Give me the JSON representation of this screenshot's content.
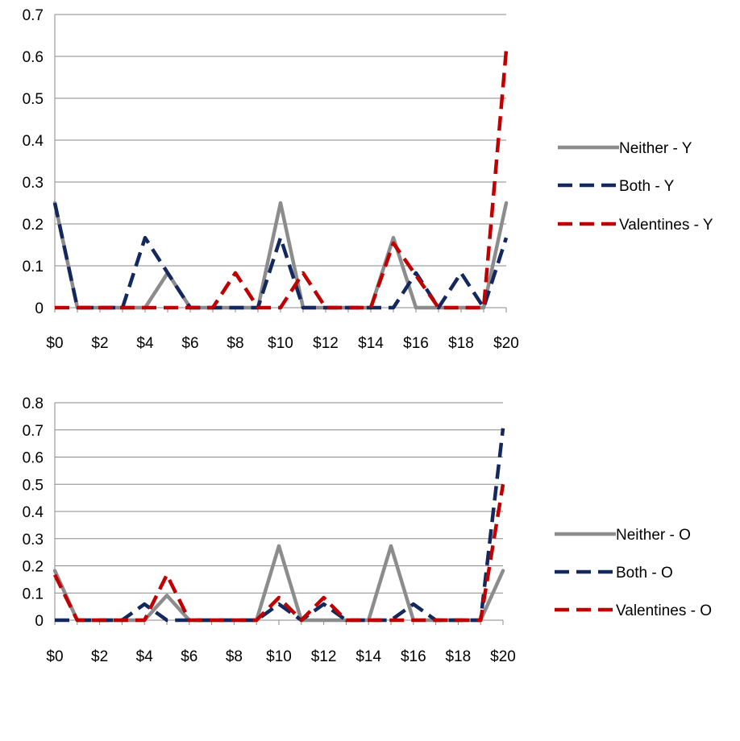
{
  "chart_data": [
    {
      "type": "line",
      "categories": [
        "$0",
        "$1",
        "$2",
        "$3",
        "$4",
        "$5",
        "$6",
        "$7",
        "$8",
        "$9",
        "$10",
        "$11",
        "$12",
        "$13",
        "$14",
        "$15",
        "$16",
        "$17",
        "$18",
        "$19",
        "$20"
      ],
      "x_tick_labels": [
        "$0",
        "$2",
        "$4",
        "$6",
        "$8",
        "$10",
        "$12",
        "$14",
        "$16",
        "$18",
        "$20"
      ],
      "ylim": [
        0,
        0.7
      ],
      "y_ticks": [
        "0",
        "0.1",
        "0.2",
        "0.3",
        "0.4",
        "0.5",
        "0.6",
        "0.7"
      ],
      "grid": true,
      "legend_position": "right",
      "series": [
        {
          "name": "Neither - Y",
          "color": "#8c8c8c",
          "style": "solid",
          "values": [
            0.25,
            0,
            0,
            0,
            0,
            0.083,
            0,
            0,
            0,
            0,
            0.25,
            0,
            0,
            0,
            0,
            0.167,
            0,
            0,
            0,
            0,
            0.25
          ]
        },
        {
          "name": "Both - Y",
          "color": "#13285e",
          "style": "dashed",
          "values": [
            0.25,
            0,
            0,
            0,
            0.167,
            0.083,
            0,
            0,
            0,
            0,
            0.167,
            0,
            0,
            0,
            0,
            0,
            0.083,
            0,
            0.083,
            0,
            0.167
          ]
        },
        {
          "name": "Valentines - Y",
          "color": "#c00000",
          "style": "dashed",
          "values": [
            0,
            0,
            0,
            0,
            0,
            0,
            0,
            0,
            0.083,
            0,
            0,
            0.083,
            0,
            0,
            0,
            0.154,
            0.077,
            0,
            0,
            0,
            0.615
          ]
        }
      ]
    },
    {
      "type": "line",
      "categories": [
        "$0",
        "$1",
        "$2",
        "$3",
        "$4",
        "$5",
        "$6",
        "$7",
        "$8",
        "$9",
        "$10",
        "$11",
        "$12",
        "$13",
        "$14",
        "$15",
        "$16",
        "$17",
        "$18",
        "$19",
        "$20"
      ],
      "x_tick_labels": [
        "$0",
        "$2",
        "$4",
        "$6",
        "$8",
        "$10",
        "$12",
        "$14",
        "$16",
        "$18",
        "$20"
      ],
      "ylim": [
        0,
        0.8
      ],
      "y_ticks": [
        "0",
        "0.1",
        "0.2",
        "0.3",
        "0.4",
        "0.5",
        "0.6",
        "0.7",
        "0.8"
      ],
      "grid": true,
      "legend_position": "right",
      "series": [
        {
          "name": "Neither - O",
          "color": "#8c8c8c",
          "style": "solid",
          "values": [
            0.182,
            0,
            0,
            0,
            0,
            0.091,
            0,
            0,
            0,
            0,
            0.273,
            0,
            0,
            0,
            0,
            0.273,
            0,
            0,
            0,
            0,
            0.182
          ]
        },
        {
          "name": "Both - O",
          "color": "#13285e",
          "style": "dashed",
          "values": [
            0,
            0,
            0,
            0,
            0.059,
            0,
            0,
            0,
            0,
            0,
            0.059,
            0,
            0.059,
            0,
            0,
            0,
            0.059,
            0,
            0,
            0,
            0.706
          ]
        },
        {
          "name": "Valentines - O",
          "color": "#c00000",
          "style": "dashed",
          "values": [
            0.167,
            0,
            0,
            0,
            0,
            0.167,
            0,
            0,
            0,
            0,
            0.083,
            0,
            0.083,
            0,
            0,
            0,
            0,
            0,
            0,
            0,
            0.5
          ]
        }
      ]
    }
  ]
}
